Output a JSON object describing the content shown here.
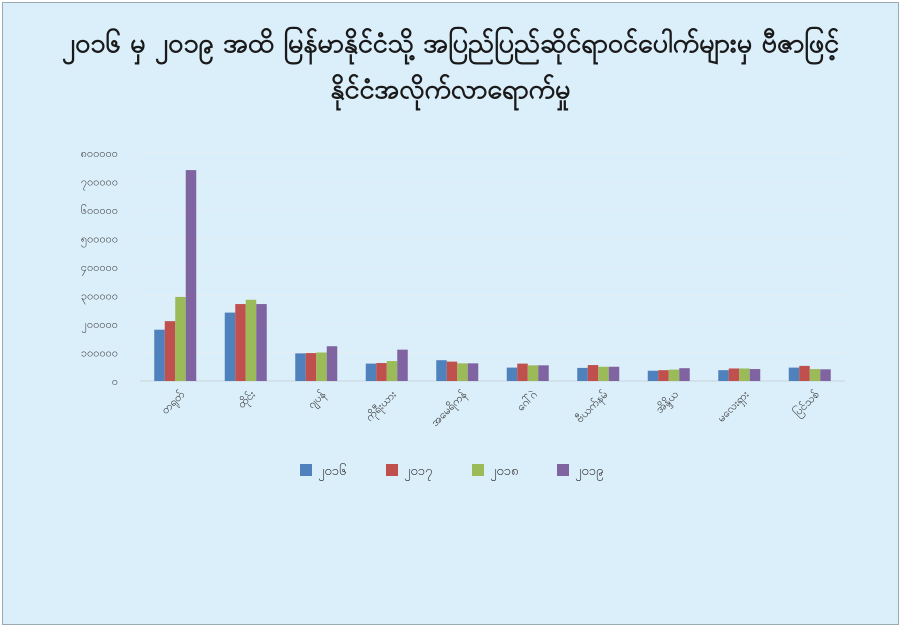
{
  "chart_data": {
    "type": "bar",
    "title": "၂၀၁၆ မှ ၂၀၁၉ အထိ မြန်မာနိုင်ငံသို့ အပြည်ပြည်ဆိုင်ရာဝင်ပေါက်များမှ ဗီဇာဖြင့်နိုင်ငံအလိုက်လာရောက်မှု",
    "categories": [
      "တရုတ်",
      "ထိုင်း",
      "ဂျပန်",
      "ကိုရီးယား",
      "အမေရိကန်",
      "ဂေါ်ဂဲ",
      "ဗီယက်နမ်",
      "အိန္ဒိယ",
      "မလေးရှား",
      "ပြင်သစ်"
    ],
    "series": [
      {
        "name": "၂၀၁၆",
        "color": "#4f81bd",
        "values": [
          180000,
          240000,
          97000,
          61000,
          73000,
          47000,
          46000,
          36000,
          38000,
          47000
        ]
      },
      {
        "name": "၂၀၁၇",
        "color": "#c0504d",
        "values": [
          210000,
          270000,
          98000,
          63000,
          68000,
          61000,
          56000,
          38000,
          44000,
          53000
        ]
      },
      {
        "name": "၂၀၁၈",
        "color": "#9bbb59",
        "values": [
          295000,
          285000,
          100000,
          70000,
          62000,
          55000,
          50000,
          40000,
          44000,
          42000
        ]
      },
      {
        "name": "၂၀၁၉",
        "color": "#8064a2",
        "values": [
          740000,
          270000,
          122000,
          110000,
          62000,
          55000,
          50000,
          45000,
          42000,
          41000
        ]
      }
    ],
    "ytick_labels": [
      "၀",
      "၁၀၀၀၀၀",
      "၂၀၀၀၀၀",
      "၃၀၀၀၀၀",
      "၄၀၀၀၀၀",
      "၅၀၀၀၀၀",
      "၆၀၀၀၀၀",
      "၇၀၀၀၀၀",
      "၈၀၀၀၀၀"
    ],
    "ylim": [
      0,
      800000
    ],
    "grid": true,
    "legend_position": "bottom"
  }
}
